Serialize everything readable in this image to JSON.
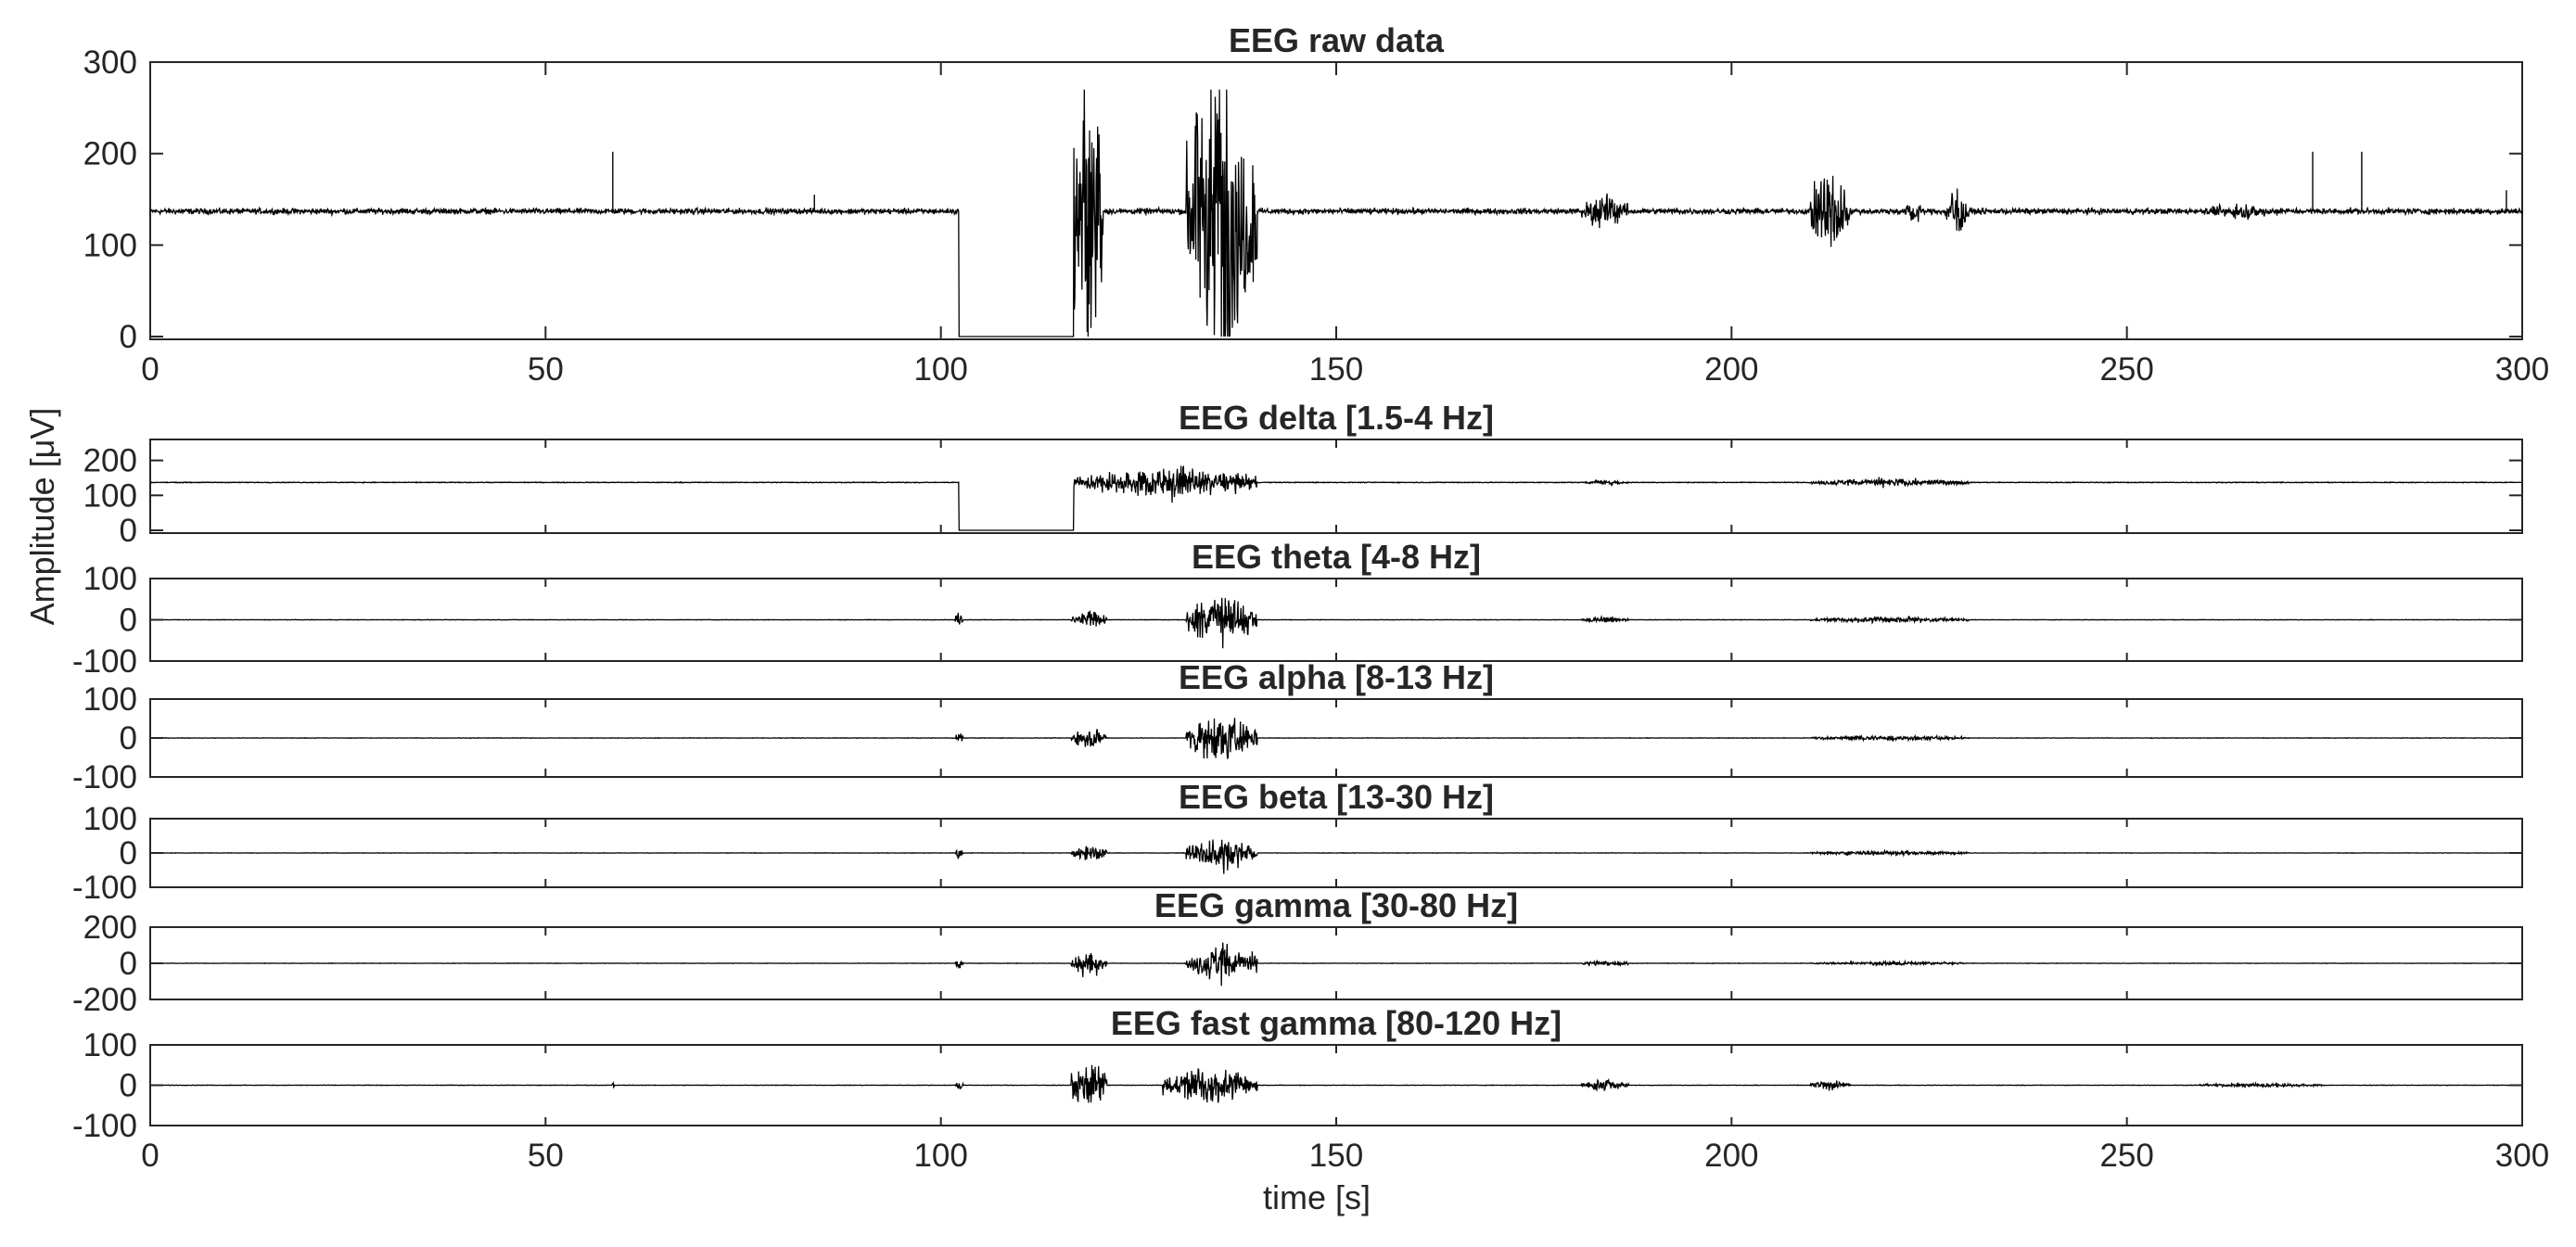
{
  "figure": {
    "ylabel": "Amplitude [μV]",
    "xlabel": "time [s]",
    "line_color": "#000000",
    "axes_color": "#262626",
    "xlim": [
      0,
      300
    ],
    "xticks": [
      0,
      50,
      100,
      150,
      200,
      250,
      300
    ]
  },
  "chart_data": [
    {
      "id": "raw",
      "type": "line",
      "title": "EEG raw data",
      "ylim": [
        -3,
        300
      ],
      "yticks": [
        0,
        100,
        200,
        300
      ],
      "xtick_labels": true,
      "baseline": 137,
      "noise": 4.5,
      "dropout": [
        102.3,
        116.8
      ],
      "dropout_value": 0,
      "bursts": [
        {
          "x": [
            116.5,
            120.5
          ],
          "amp": 270,
          "clip": [
            0,
            270
          ]
        },
        {
          "x": [
            131,
            140
          ],
          "amp": 270,
          "clip": [
            0,
            270
          ]
        },
        {
          "x": [
            181,
            187
          ],
          "amp": 30
        },
        {
          "x": [
            210,
            215
          ],
          "amp": 80
        },
        {
          "x": [
            222,
            224
          ],
          "amp": 25
        },
        {
          "x": [
            227,
            230
          ],
          "amp": 45
        },
        {
          "x": [
            259,
            270
          ],
          "amp": 12
        }
      ],
      "spikes": [
        {
          "x": 58.5,
          "y": 202
        },
        {
          "x": 84,
          "y": 155
        },
        {
          "x": 273.5,
          "y": 202
        },
        {
          "x": 279.7,
          "y": 202
        },
        {
          "x": 298,
          "y": 160
        }
      ]
    },
    {
      "id": "delta",
      "type": "line",
      "title": "EEG delta [1.5-4 Hz]",
      "ylim": [
        -8,
        260
      ],
      "yticks": [
        0,
        100,
        200
      ],
      "xtick_labels": false,
      "baseline": 137,
      "noise": 1.5,
      "dropout": [
        102.3,
        116.8
      ],
      "dropout_value": 0,
      "bursts": [
        {
          "x": [
            116.8,
            140
          ],
          "amp": 70
        },
        {
          "x": [
            181,
            187
          ],
          "amp": 10
        },
        {
          "x": [
            210,
            230
          ],
          "amp": 18
        }
      ],
      "spikes": []
    },
    {
      "id": "theta",
      "type": "line",
      "title": "EEG theta [4-8 Hz]",
      "ylim": [
        -100,
        100
      ],
      "yticks": [
        -100,
        0,
        100
      ],
      "xtick_labels": false,
      "baseline": 0,
      "noise": 0.7,
      "bursts": [
        {
          "x": [
            101.8,
            102.8
          ],
          "amp": 35
        },
        {
          "x": [
            116.5,
            121
          ],
          "amp": 30
        },
        {
          "x": [
            131,
            140
          ],
          "amp": 100
        },
        {
          "x": [
            181,
            187
          ],
          "amp": 12
        },
        {
          "x": [
            210,
            230
          ],
          "amp": 12
        }
      ],
      "spikes": []
    },
    {
      "id": "alpha",
      "type": "line",
      "title": "EEG alpha [8-13 Hz]",
      "ylim": [
        -100,
        100
      ],
      "yticks": [
        -100,
        0,
        100
      ],
      "xtick_labels": false,
      "baseline": 0,
      "noise": 0.8,
      "bursts": [
        {
          "x": [
            101.8,
            102.8
          ],
          "amp": 30
        },
        {
          "x": [
            116.5,
            121
          ],
          "amp": 45
        },
        {
          "x": [
            131,
            140
          ],
          "amp": 95
        },
        {
          "x": [
            210,
            230
          ],
          "amp": 10
        }
      ],
      "spikes": []
    },
    {
      "id": "beta",
      "type": "line",
      "title": "EEG beta [13-30 Hz]",
      "ylim": [
        -100,
        100
      ],
      "yticks": [
        -100,
        0,
        100
      ],
      "xtick_labels": false,
      "baseline": 0,
      "noise": 0.8,
      "bursts": [
        {
          "x": [
            101.8,
            102.8
          ],
          "amp": 25
        },
        {
          "x": [
            116.5,
            121
          ],
          "amp": 40
        },
        {
          "x": [
            131,
            140
          ],
          "amp": 85
        },
        {
          "x": [
            210,
            230
          ],
          "amp": 10
        }
      ],
      "spikes": []
    },
    {
      "id": "gamma",
      "type": "line",
      "title": "EEG gamma [30-80 Hz]",
      "ylim": [
        -200,
        200
      ],
      "yticks": [
        -200,
        0,
        200
      ],
      "xtick_labels": false,
      "baseline": 0,
      "noise": 1.5,
      "bursts": [
        {
          "x": [
            101.8,
            102.8
          ],
          "amp": 60
        },
        {
          "x": [
            116.5,
            121
          ],
          "amp": 130
        },
        {
          "x": [
            131,
            140
          ],
          "amp": 160
        },
        {
          "x": [
            181,
            187
          ],
          "amp": 25
        },
        {
          "x": [
            210,
            230
          ],
          "amp": 15
        }
      ],
      "spikes": []
    },
    {
      "id": "fastgamma",
      "type": "line",
      "title": "EEG fast gamma [80-120 Hz]",
      "ylim": [
        -100,
        100
      ],
      "yticks": [
        -100,
        0,
        100
      ],
      "xtick_labels": true,
      "baseline": 0,
      "noise": 0.8,
      "bursts": [
        {
          "x": [
            58.4,
            58.8
          ],
          "amp": 15
        },
        {
          "x": [
            101.8,
            102.8
          ],
          "amp": 20
        },
        {
          "x": [
            116.5,
            121
          ],
          "amp": 95
        },
        {
          "x": [
            128,
            140
          ],
          "amp": 75
        },
        {
          "x": [
            181,
            187
          ],
          "amp": 20
        },
        {
          "x": [
            210,
            215
          ],
          "amp": 18
        },
        {
          "x": [
            259,
            275
          ],
          "amp": 8
        }
      ],
      "spikes": []
    }
  ]
}
